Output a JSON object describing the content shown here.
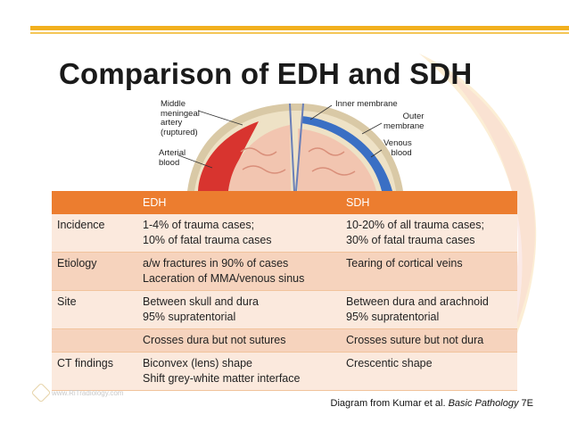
{
  "title": "Comparison of EDH and SDH",
  "diagram": {
    "labels_left": [
      "Middle\nmeningeal\nartery\n(ruptured)",
      "Arterial\nblood"
    ],
    "labels_right": [
      "Inner membrane",
      "Outer\nmembrane",
      "Venous\nblood"
    ]
  },
  "table": {
    "headers": [
      "",
      "EDH",
      "SDH"
    ],
    "rows": [
      {
        "label": "Incidence",
        "edh": "1-4% of trauma cases;\n10% of fatal trauma cases",
        "sdh": "10-20% of all trauma cases;\n30% of fatal trauma cases"
      },
      {
        "label": "Etiology",
        "edh": "a/w fractures in 90% of cases\nLaceration of MMA/venous sinus",
        "sdh": "Tearing of cortical veins"
      },
      {
        "label": "Site",
        "edh": "Between skull and dura\n95% supratentorial",
        "sdh": "Between dura and arachnoid\n95% supratentorial"
      },
      {
        "label": "",
        "edh": "Crosses dura but not sutures",
        "sdh": "Crosses suture but not dura"
      },
      {
        "label": "CT findings",
        "edh": "Biconvex (lens) shape\nShift grey-white matter interface",
        "sdh": "Crescentic shape"
      }
    ]
  },
  "caption": {
    "prefix": "Diagram from Kumar et al. ",
    "italic": "Basic Pathology",
    "suffix": " 7E"
  },
  "watermark": "www.RiTradiology.com",
  "colors": {
    "header_orange": "#ec7d2f",
    "row_light": "#fbe9dd",
    "row_dark": "#f6d3bd",
    "accent_yellow": "#f2b01e"
  }
}
